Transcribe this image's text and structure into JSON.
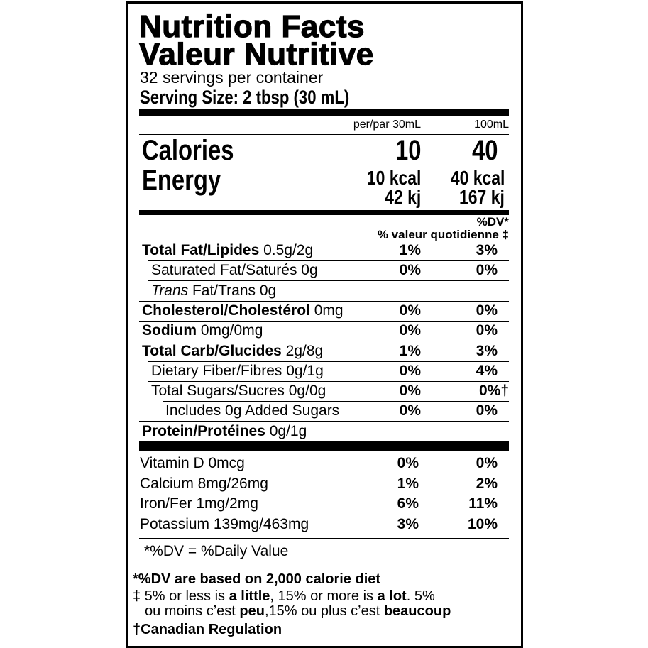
{
  "title_en": "Nutrition Facts",
  "title_fr": "Valeur Nutritive",
  "servings": "32 servings per container",
  "serving_size": "Serving Size: 2 tbsp (30 mL)",
  "col_headers": {
    "per": "per/par 30mL",
    "per100": "100mL"
  },
  "calories": {
    "label": "Calories",
    "per": "10",
    "per100": "40"
  },
  "energy": {
    "label": "Energy",
    "kcal_per": "10 kcal",
    "kcal_100": "40 kcal",
    "kj_per": "42 kj",
    "kj_100": "167 kj"
  },
  "dv_header": {
    "line1": "%DV*",
    "line2": "% valeur quotidienne ‡"
  },
  "nutrients": [
    {
      "name": "Total Fat/Lipides",
      "amount": "0.5g/2g",
      "dv": "1%",
      "dv100": "3%",
      "bold": true,
      "indent": 0
    },
    {
      "name": "Saturated Fat/Saturés 0g",
      "amount": "",
      "dv": "0%",
      "dv100": "0%",
      "bold": false,
      "indent": 1
    },
    {
      "name_italic": "Trans",
      "name": " Fat/Trans 0g",
      "amount": "",
      "dv": "",
      "dv100": "",
      "bold": false,
      "indent": 1
    },
    {
      "name": "Cholesterol/Cholestérol",
      "amount": "0mg",
      "dv": "0%",
      "dv100": "0%",
      "bold": true,
      "indent": 0
    },
    {
      "name": "Sodium",
      "amount": "0mg/0mg",
      "dv": "0%",
      "dv100": "0%",
      "bold": true,
      "indent": 0
    },
    {
      "name": "Total Carb/Glucides",
      "amount": "2g/8g",
      "dv": "1%",
      "dv100": "3%",
      "bold": true,
      "indent": 0
    },
    {
      "name": "Dietary Fiber/Fibres 0g/1g",
      "amount": "",
      "dv": "0%",
      "dv100": "4%",
      "bold": false,
      "indent": 1
    },
    {
      "name": "Total Sugars/Sucres 0g/0g",
      "amount": "",
      "dv": "0%",
      "dv100": "0%†",
      "bold": false,
      "indent": 1
    },
    {
      "name": "Includes 0g Added Sugars",
      "amount": "",
      "dv": "0%",
      "dv100": "0%",
      "bold": false,
      "indent": 2
    },
    {
      "name": "Protein/Protéines",
      "amount": "0g/1g",
      "dv": "",
      "dv100": "",
      "bold": true,
      "indent": 0
    }
  ],
  "vitamins": [
    {
      "name": "Vitamin D 0mcg",
      "dv": "0%",
      "dv100": "0%"
    },
    {
      "name": "Calcium 8mg/26mg",
      "dv": "1%",
      "dv100": "2%"
    },
    {
      "name": "Iron/Fer 1mg/2mg",
      "dv": "6%",
      "dv100": "11%"
    },
    {
      "name": "Potassium 139mg/463mg",
      "dv": "3%",
      "dv100": "10%"
    }
  ],
  "dv_note": "*%DV = %Daily Value",
  "footer": {
    "line1": "*%DV are based on 2,000 calorie diet",
    "line2": [
      {
        "t": "‡ 5% or less is ",
        "b": false
      },
      {
        "t": "a little",
        "b": true
      },
      {
        "t": ", 15% or more is ",
        "b": false
      },
      {
        "t": "a lot",
        "b": true
      },
      {
        "t": ". 5%",
        "b": false
      }
    ],
    "line3": [
      {
        "t": "ou moins c’est ",
        "b": false
      },
      {
        "t": "peu",
        "b": true
      },
      {
        "t": ",15% ou plus c’est ",
        "b": false
      },
      {
        "t": "beaucoup",
        "b": true
      }
    ],
    "line4": "†Canadian Regulation"
  }
}
